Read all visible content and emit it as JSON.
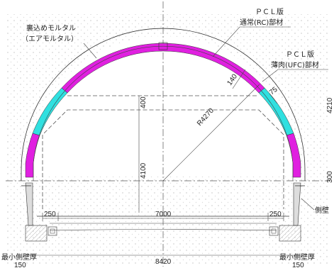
{
  "labels": {
    "backfill_line1": "裏込めモルタル",
    "backfill_line2": "（エアモルタル）",
    "pcl_rc_line1": "ＰＣＬ版",
    "pcl_rc_line2": "通常(RC)部材",
    "pcl_ufc_line1": "ＰＣＬ版",
    "pcl_ufc_line2": "薄肉(UFC)部材",
    "side_wall": "側壁",
    "min_wall_left": "最小側壁厚",
    "min_wall_right": "最小側壁厚"
  },
  "dimensions": {
    "thickness_rc": "140",
    "thickness_ufc": "75",
    "radius": "R4270",
    "height_400": "400",
    "height_4100": "4100",
    "width_250_left": "250",
    "width_7000": "7000",
    "width_250_right": "250",
    "wall_150_left": "150",
    "wall_150_right": "150",
    "total_width": "8420",
    "edge_partial_1": "4210",
    "edge_partial_2": "300"
  },
  "colors": {
    "rc_segment": "#e020e0",
    "ufc_segment": "#30e0e0",
    "ground_hatch": "#cccccc",
    "side_wall_fill": "#dddddd"
  }
}
